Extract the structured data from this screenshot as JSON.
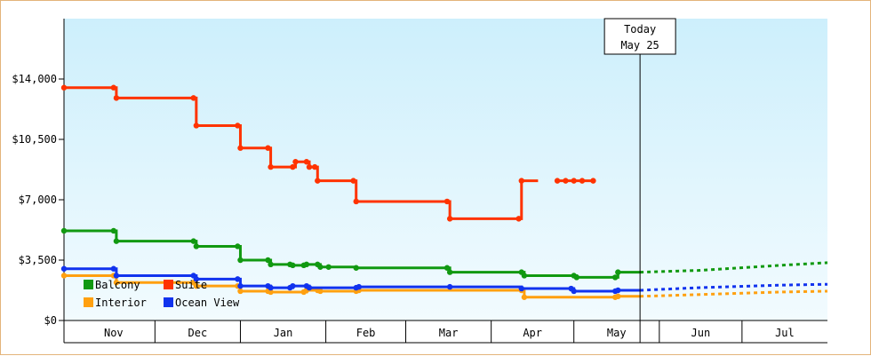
{
  "chart_data": {
    "type": "line",
    "title": "",
    "xlabel": "",
    "ylabel": "",
    "x_range": [
      "2023-10-29",
      "2024-08-01"
    ],
    "ylim": [
      0,
      17500
    ],
    "y_ticks": [
      {
        "value": 0,
        "label": "$0"
      },
      {
        "value": 3500,
        "label": "$3,500"
      },
      {
        "value": 7000,
        "label": "$7,000"
      },
      {
        "value": 10500,
        "label": "$10,500"
      },
      {
        "value": 14000,
        "label": "$14,000"
      }
    ],
    "months": [
      {
        "label": "Nov",
        "start": "2023-11-01",
        "end": "2023-12-01"
      },
      {
        "label": "Dec",
        "start": "2023-12-01",
        "end": "2024-01-01"
      },
      {
        "label": "Jan",
        "start": "2024-01-01",
        "end": "2024-02-01"
      },
      {
        "label": "Feb",
        "start": "2024-02-01",
        "end": "2024-03-01"
      },
      {
        "label": "Mar",
        "start": "2024-03-01",
        "end": "2024-04-01"
      },
      {
        "label": "Apr",
        "start": "2024-04-01",
        "end": "2024-05-01"
      },
      {
        "label": "May",
        "start": "2024-05-01",
        "end": "2024-06-01"
      },
      {
        "label": "Jun",
        "start": "2024-06-01",
        "end": "2024-07-01"
      },
      {
        "label": "Jul",
        "start": "2024-07-01",
        "end": "2024-08-01"
      }
    ],
    "today": {
      "line1": "Today",
      "line2": "May 25",
      "date": "2024-05-25"
    },
    "grid": false,
    "legend_position": "bottom-left",
    "background_gradient": [
      "#cdeffc",
      "#f2fbfe"
    ],
    "series": [
      {
        "name": "Balcony",
        "color": "#119911",
        "style": "step",
        "points": [
          [
            "2023-10-29",
            5200
          ],
          [
            "2023-11-16",
            5200
          ],
          [
            "2023-11-17",
            4600
          ],
          [
            "2023-12-15",
            4600
          ],
          [
            "2023-12-16",
            4300
          ],
          [
            "2023-12-31",
            4300
          ],
          [
            "2024-01-01",
            3500
          ],
          [
            "2024-01-11",
            3500
          ],
          [
            "2024-01-12",
            3250
          ],
          [
            "2024-01-19",
            3250
          ],
          [
            "2024-01-20",
            3200
          ],
          [
            "2024-01-24",
            3200
          ],
          [
            "2024-01-25",
            3250
          ],
          [
            "2024-01-29",
            3250
          ],
          [
            "2024-01-30",
            3100
          ],
          [
            "2024-02-02",
            3100
          ],
          [
            "2024-02-12",
            3050
          ],
          [
            "2024-02-13",
            3050
          ],
          [
            "2024-03-16",
            3050
          ],
          [
            "2024-03-17",
            2800
          ],
          [
            "2024-04-12",
            2800
          ],
          [
            "2024-04-13",
            2600
          ],
          [
            "2024-05-01",
            2600
          ],
          [
            "2024-05-02",
            2500
          ],
          [
            "2024-05-16",
            2500
          ],
          [
            "2024-05-17",
            2800
          ],
          [
            "2024-05-25",
            2800
          ]
        ],
        "forecast": [
          [
            "2024-05-25",
            2800
          ],
          [
            "2024-06-15",
            2900
          ],
          [
            "2024-07-15",
            3200
          ],
          [
            "2024-08-01",
            3350
          ]
        ]
      },
      {
        "name": "Suite",
        "color": "#ff3300",
        "style": "step",
        "points": [
          [
            "2023-10-29",
            13500
          ],
          [
            "2023-11-16",
            13500
          ],
          [
            "2023-11-17",
            12900
          ],
          [
            "2023-12-15",
            12900
          ],
          [
            "2023-12-16",
            11300
          ],
          [
            "2023-12-31",
            11300
          ],
          [
            "2024-01-01",
            10000
          ],
          [
            "2024-01-11",
            10000
          ],
          [
            "2024-01-12",
            8900
          ],
          [
            "2024-01-20",
            8900
          ],
          [
            "2024-01-21",
            9200
          ],
          [
            "2024-01-25",
            9200
          ],
          [
            "2024-01-26",
            8900
          ],
          [
            "2024-01-28",
            8900
          ],
          [
            "2024-01-29",
            8100
          ],
          [
            "2024-02-11",
            8100
          ],
          [
            "2024-02-12",
            6900
          ],
          [
            "2024-03-16",
            6900
          ],
          [
            "2024-03-17",
            5900
          ],
          [
            "2024-04-11",
            5900
          ],
          [
            "2024-04-12",
            8100
          ],
          [
            "2024-04-18",
            8100
          ]
        ],
        "extra_segment": [
          [
            "2024-04-25",
            8100
          ],
          [
            "2024-05-08",
            8100
          ]
        ]
      },
      {
        "name": "Interior",
        "color": "#ffa010",
        "style": "step",
        "points": [
          [
            "2023-10-29",
            2600
          ],
          [
            "2023-11-16",
            2600
          ],
          [
            "2023-11-17",
            2200
          ],
          [
            "2023-12-15",
            2200
          ],
          [
            "2023-12-16",
            2000
          ],
          [
            "2023-12-31",
            2000
          ],
          [
            "2024-01-01",
            1700
          ],
          [
            "2024-01-11",
            1700
          ],
          [
            "2024-01-12",
            1650
          ],
          [
            "2024-01-24",
            1650
          ],
          [
            "2024-01-25",
            1750
          ],
          [
            "2024-01-29",
            1750
          ],
          [
            "2024-01-30",
            1700
          ],
          [
            "2024-02-12",
            1700
          ],
          [
            "2024-02-13",
            1750
          ],
          [
            "2024-03-17",
            1750
          ],
          [
            "2024-04-12",
            1750
          ],
          [
            "2024-04-13",
            1350
          ],
          [
            "2024-04-25",
            1350
          ],
          [
            "2024-05-16",
            1350
          ],
          [
            "2024-05-17",
            1400
          ],
          [
            "2024-05-25",
            1400
          ]
        ],
        "forecast": [
          [
            "2024-05-25",
            1400
          ],
          [
            "2024-06-15",
            1500
          ],
          [
            "2024-07-15",
            1650
          ],
          [
            "2024-08-01",
            1700
          ]
        ]
      },
      {
        "name": "Ocean View",
        "color": "#1133ee",
        "style": "step",
        "points": [
          [
            "2023-10-29",
            3000
          ],
          [
            "2023-11-16",
            3000
          ],
          [
            "2023-11-17",
            2600
          ],
          [
            "2023-12-15",
            2600
          ],
          [
            "2023-12-16",
            2400
          ],
          [
            "2023-12-31",
            2400
          ],
          [
            "2024-01-01",
            2000
          ],
          [
            "2024-01-11",
            2000
          ],
          [
            "2024-01-12",
            1900
          ],
          [
            "2024-01-19",
            1900
          ],
          [
            "2024-01-20",
            2000
          ],
          [
            "2024-01-25",
            2000
          ],
          [
            "2024-01-26",
            1900
          ],
          [
            "2024-02-12",
            1900
          ],
          [
            "2024-02-13",
            1950
          ],
          [
            "2024-03-17",
            1950
          ],
          [
            "2024-04-12",
            1850
          ],
          [
            "2024-04-30",
            1850
          ],
          [
            "2024-05-01",
            1700
          ],
          [
            "2024-05-16",
            1700
          ],
          [
            "2024-05-17",
            1750
          ],
          [
            "2024-05-25",
            1750
          ]
        ],
        "forecast": [
          [
            "2024-05-25",
            1750
          ],
          [
            "2024-06-15",
            1900
          ],
          [
            "2024-07-15",
            2050
          ],
          [
            "2024-08-01",
            2100
          ]
        ]
      }
    ],
    "legend": [
      {
        "label": "Balcony",
        "color": "#119911"
      },
      {
        "label": "Suite",
        "color": "#ff3300"
      },
      {
        "label": "Interior",
        "color": "#ffa010"
      },
      {
        "label": "Ocean View",
        "color": "#1133ee"
      }
    ]
  }
}
